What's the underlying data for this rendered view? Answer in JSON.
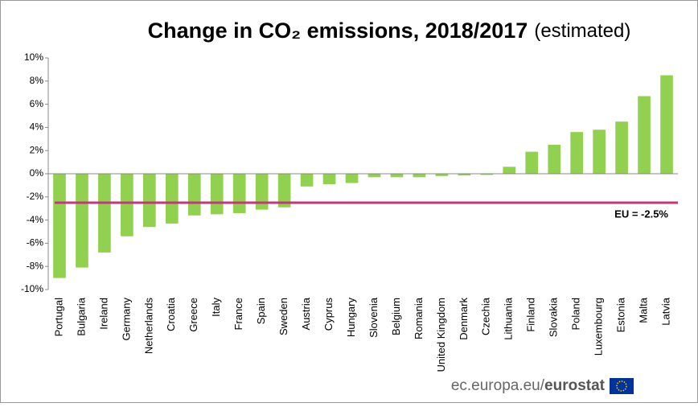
{
  "chart_data": {
    "type": "bar",
    "title": "Change in CO₂ emissions, 2018/2017",
    "subtitle": "(estimated)",
    "categories": [
      "Portugal",
      "Bulgaria",
      "Ireland",
      "Germany",
      "Netherlands",
      "Croatia",
      "Greece",
      "Italy",
      "France",
      "Spain",
      "Sweden",
      "Austria",
      "Cyprus",
      "Hungary",
      "Slovenia",
      "Belgium",
      "Romania",
      "United Kingdom",
      "Denmark",
      "Czechia",
      "Lithuania",
      "Finland",
      "Slovakia",
      "Poland",
      "Luxembourg",
      "Estonia",
      "Malta",
      "Latvia"
    ],
    "values": [
      -9.0,
      -8.1,
      -6.8,
      -5.4,
      -4.6,
      -4.3,
      -3.6,
      -3.5,
      -3.4,
      -3.1,
      -2.9,
      -1.1,
      -0.9,
      -0.8,
      -0.3,
      -0.3,
      -0.3,
      -0.2,
      -0.15,
      -0.1,
      0.6,
      1.9,
      2.5,
      3.6,
      3.8,
      4.5,
      6.7,
      8.5
    ],
    "color": "#92d050",
    "ylim": [
      -10,
      10
    ],
    "yticks": [
      {
        "value": -10,
        "label": "-10%"
      },
      {
        "value": -8,
        "label": "-8%"
      },
      {
        "value": -6,
        "label": "-6%"
      },
      {
        "value": -4,
        "label": "-4%"
      },
      {
        "value": -2,
        "label": "-2%"
      },
      {
        "value": 0,
        "label": "0%"
      },
      {
        "value": 2,
        "label": "2%"
      },
      {
        "value": 4,
        "label": "4%"
      },
      {
        "value": 6,
        "label": "6%"
      },
      {
        "value": 8,
        "label": "8%"
      },
      {
        "value": 10,
        "label": "10%"
      }
    ],
    "grid": false,
    "reference_line": {
      "value": -2.5,
      "label": "EU = -2.5%",
      "color": "#c0397a"
    },
    "source": {
      "domain": "ec.europa.eu/",
      "brand": "eurostat"
    }
  }
}
